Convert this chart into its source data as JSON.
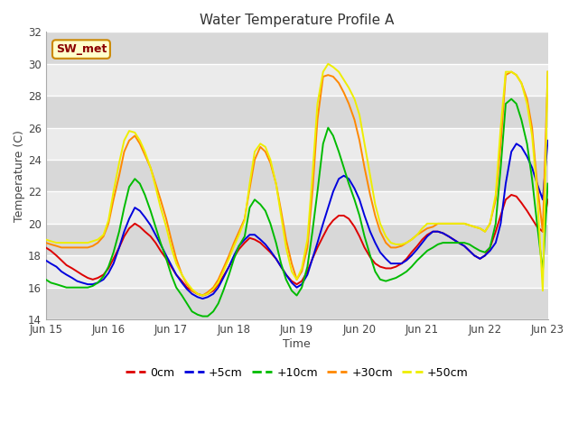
{
  "title": "Water Temperature Profile A",
  "xlabel": "Time",
  "ylabel": "Temperature (C)",
  "ylim": [
    14,
    32
  ],
  "annotation": {
    "text": "SW_met",
    "color": "#8b0000",
    "bg": "#ffffcc",
    "border_color": "#cc8800",
    "fontsize": 9
  },
  "series_colors": {
    "0cm": "#dd0000",
    "+5cm": "#0000dd",
    "+10cm": "#00bb00",
    "+30cm": "#ff8800",
    "+50cm": "#eeee00"
  },
  "xtick_positions": [
    0,
    1,
    2,
    3,
    4,
    5,
    6,
    7,
    8
  ],
  "xtick_labels": [
    "Jun 15",
    "Jun 16",
    "Jun 17",
    "Jun 18",
    "Jun 19",
    "Jun 20",
    "Jun 21",
    "Jun 22",
    "Jun 23"
  ],
  "ytick_values": [
    14,
    16,
    18,
    20,
    22,
    24,
    26,
    28,
    30,
    32
  ],
  "bg_stripe_ranges": [
    [
      14,
      16
    ],
    [
      18,
      20
    ],
    [
      22,
      24
    ],
    [
      26,
      28
    ],
    [
      30,
      32
    ]
  ],
  "data": {
    "0cm": {
      "x": [
        0.0,
        0.08,
        0.17,
        0.25,
        0.33,
        0.42,
        0.5,
        0.58,
        0.67,
        0.75,
        0.83,
        0.92,
        1.0,
        1.08,
        1.17,
        1.25,
        1.33,
        1.42,
        1.5,
        1.58,
        1.67,
        1.75,
        1.83,
        1.92,
        2.0,
        2.08,
        2.17,
        2.25,
        2.33,
        2.42,
        2.5,
        2.58,
        2.67,
        2.75,
        2.83,
        2.92,
        3.0,
        3.08,
        3.17,
        3.25,
        3.33,
        3.42,
        3.5,
        3.58,
        3.67,
        3.75,
        3.83,
        3.92,
        4.0,
        4.08,
        4.17,
        4.25,
        4.33,
        4.42,
        4.5,
        4.58,
        4.67,
        4.75,
        4.83,
        4.92,
        5.0,
        5.08,
        5.17,
        5.25,
        5.33,
        5.42,
        5.5,
        5.58,
        5.67,
        5.75,
        5.83,
        5.92,
        6.0,
        6.08,
        6.17,
        6.25,
        6.33,
        6.42,
        6.5,
        6.58,
        6.67,
        6.75,
        6.83,
        6.92,
        7.0,
        7.08,
        7.17,
        7.25,
        7.33,
        7.42,
        7.5,
        7.58,
        7.67,
        7.75,
        7.83,
        7.92,
        8.0
      ],
      "y": [
        18.5,
        18.3,
        18.0,
        17.7,
        17.4,
        17.2,
        17.0,
        16.8,
        16.6,
        16.5,
        16.6,
        16.8,
        17.2,
        17.8,
        18.5,
        19.2,
        19.7,
        20.0,
        19.8,
        19.5,
        19.2,
        18.8,
        18.3,
        17.8,
        17.3,
        16.8,
        16.4,
        16.0,
        15.8,
        15.6,
        15.5,
        15.6,
        15.8,
        16.2,
        16.7,
        17.3,
        17.9,
        18.4,
        18.8,
        19.1,
        19.0,
        18.8,
        18.5,
        18.2,
        17.8,
        17.3,
        16.8,
        16.4,
        16.2,
        16.4,
        17.0,
        17.8,
        18.5,
        19.2,
        19.8,
        20.2,
        20.5,
        20.5,
        20.3,
        19.8,
        19.2,
        18.5,
        17.9,
        17.5,
        17.3,
        17.2,
        17.2,
        17.3,
        17.5,
        17.8,
        18.2,
        18.6,
        19.0,
        19.3,
        19.5,
        19.5,
        19.4,
        19.2,
        19.0,
        18.8,
        18.6,
        18.3,
        18.0,
        17.8,
        18.0,
        18.5,
        19.5,
        20.5,
        21.5,
        21.8,
        21.7,
        21.3,
        20.8,
        20.3,
        19.8,
        19.5,
        21.5
      ]
    },
    "+5cm": {
      "x": [
        0.0,
        0.08,
        0.17,
        0.25,
        0.33,
        0.42,
        0.5,
        0.58,
        0.67,
        0.75,
        0.83,
        0.92,
        1.0,
        1.08,
        1.17,
        1.25,
        1.33,
        1.42,
        1.5,
        1.58,
        1.67,
        1.75,
        1.83,
        1.92,
        2.0,
        2.08,
        2.17,
        2.25,
        2.33,
        2.42,
        2.5,
        2.58,
        2.67,
        2.75,
        2.83,
        2.92,
        3.0,
        3.08,
        3.17,
        3.25,
        3.33,
        3.42,
        3.5,
        3.58,
        3.67,
        3.75,
        3.83,
        3.92,
        4.0,
        4.08,
        4.17,
        4.25,
        4.33,
        4.42,
        4.5,
        4.58,
        4.67,
        4.75,
        4.83,
        4.92,
        5.0,
        5.08,
        5.17,
        5.25,
        5.33,
        5.42,
        5.5,
        5.58,
        5.67,
        5.75,
        5.83,
        5.92,
        6.0,
        6.08,
        6.17,
        6.25,
        6.33,
        6.42,
        6.5,
        6.58,
        6.67,
        6.75,
        6.83,
        6.92,
        7.0,
        7.08,
        7.17,
        7.25,
        7.33,
        7.42,
        7.5,
        7.58,
        7.67,
        7.75,
        7.83,
        7.92,
        8.0
      ],
      "y": [
        17.7,
        17.5,
        17.3,
        17.0,
        16.8,
        16.6,
        16.4,
        16.3,
        16.2,
        16.2,
        16.3,
        16.5,
        16.9,
        17.5,
        18.5,
        19.5,
        20.3,
        21.0,
        20.8,
        20.4,
        19.9,
        19.3,
        18.7,
        18.0,
        17.4,
        16.8,
        16.3,
        15.9,
        15.6,
        15.4,
        15.3,
        15.4,
        15.6,
        16.0,
        16.6,
        17.3,
        18.0,
        18.6,
        19.0,
        19.3,
        19.3,
        19.0,
        18.7,
        18.3,
        17.8,
        17.3,
        16.8,
        16.3,
        16.0,
        16.2,
        16.8,
        17.8,
        18.8,
        20.0,
        21.0,
        22.0,
        22.8,
        23.0,
        22.8,
        22.2,
        21.5,
        20.5,
        19.5,
        18.8,
        18.2,
        17.8,
        17.5,
        17.5,
        17.5,
        17.7,
        18.0,
        18.4,
        18.8,
        19.2,
        19.5,
        19.5,
        19.4,
        19.2,
        19.0,
        18.8,
        18.6,
        18.3,
        18.0,
        17.8,
        18.0,
        18.3,
        18.8,
        20.0,
        22.5,
        24.5,
        25.0,
        24.8,
        24.2,
        23.5,
        22.5,
        21.5,
        25.2
      ]
    },
    "+10cm": {
      "x": [
        0.0,
        0.08,
        0.17,
        0.25,
        0.33,
        0.42,
        0.5,
        0.58,
        0.67,
        0.75,
        0.83,
        0.92,
        1.0,
        1.08,
        1.17,
        1.25,
        1.33,
        1.42,
        1.5,
        1.58,
        1.67,
        1.75,
        1.83,
        1.92,
        2.0,
        2.08,
        2.17,
        2.25,
        2.33,
        2.42,
        2.5,
        2.58,
        2.67,
        2.75,
        2.83,
        2.92,
        3.0,
        3.08,
        3.17,
        3.25,
        3.33,
        3.42,
        3.5,
        3.58,
        3.67,
        3.75,
        3.83,
        3.92,
        4.0,
        4.08,
        4.17,
        4.25,
        4.33,
        4.42,
        4.5,
        4.58,
        4.67,
        4.75,
        4.83,
        4.92,
        5.0,
        5.08,
        5.17,
        5.25,
        5.33,
        5.42,
        5.5,
        5.58,
        5.67,
        5.75,
        5.83,
        5.92,
        6.0,
        6.08,
        6.17,
        6.25,
        6.33,
        6.42,
        6.5,
        6.58,
        6.67,
        6.75,
        6.83,
        6.92,
        7.0,
        7.08,
        7.17,
        7.25,
        7.33,
        7.42,
        7.5,
        7.58,
        7.67,
        7.75,
        7.83,
        7.92,
        8.0
      ],
      "y": [
        16.5,
        16.3,
        16.2,
        16.1,
        16.0,
        16.0,
        16.0,
        16.0,
        16.0,
        16.1,
        16.3,
        16.7,
        17.3,
        18.2,
        19.5,
        21.0,
        22.3,
        22.8,
        22.5,
        21.8,
        20.8,
        19.8,
        18.8,
        17.8,
        16.8,
        16.0,
        15.5,
        15.0,
        14.5,
        14.3,
        14.2,
        14.2,
        14.5,
        15.0,
        15.8,
        16.8,
        17.8,
        18.6,
        19.2,
        21.0,
        21.5,
        21.2,
        20.8,
        20.0,
        18.8,
        17.5,
        16.5,
        15.8,
        15.5,
        16.0,
        17.3,
        19.5,
        22.0,
        25.0,
        26.0,
        25.5,
        24.5,
        23.5,
        22.5,
        21.5,
        20.5,
        19.2,
        18.0,
        17.0,
        16.5,
        16.4,
        16.5,
        16.6,
        16.8,
        17.0,
        17.3,
        17.7,
        18.0,
        18.3,
        18.5,
        18.7,
        18.8,
        18.8,
        18.8,
        18.8,
        18.8,
        18.7,
        18.5,
        18.3,
        18.2,
        18.5,
        20.0,
        23.5,
        27.5,
        27.8,
        27.5,
        26.5,
        25.0,
        22.8,
        20.0,
        17.0,
        22.5
      ]
    },
    "+30cm": {
      "x": [
        0.0,
        0.08,
        0.17,
        0.25,
        0.33,
        0.42,
        0.5,
        0.58,
        0.67,
        0.75,
        0.83,
        0.92,
        1.0,
        1.08,
        1.17,
        1.25,
        1.33,
        1.42,
        1.5,
        1.58,
        1.67,
        1.75,
        1.83,
        1.92,
        2.0,
        2.08,
        2.17,
        2.25,
        2.33,
        2.42,
        2.5,
        2.58,
        2.67,
        2.75,
        2.83,
        2.92,
        3.0,
        3.08,
        3.17,
        3.25,
        3.33,
        3.42,
        3.5,
        3.58,
        3.67,
        3.75,
        3.83,
        3.92,
        4.0,
        4.08,
        4.17,
        4.25,
        4.33,
        4.42,
        4.5,
        4.58,
        4.67,
        4.75,
        4.83,
        4.92,
        5.0,
        5.08,
        5.17,
        5.25,
        5.33,
        5.42,
        5.5,
        5.58,
        5.67,
        5.75,
        5.83,
        5.92,
        6.0,
        6.08,
        6.17,
        6.25,
        6.33,
        6.42,
        6.5,
        6.58,
        6.67,
        6.75,
        6.83,
        6.92,
        7.0,
        7.08,
        7.17,
        7.25,
        7.33,
        7.42,
        7.5,
        7.58,
        7.67,
        7.75,
        7.83,
        7.92,
        8.0
      ],
      "y": [
        18.8,
        18.7,
        18.6,
        18.5,
        18.5,
        18.5,
        18.5,
        18.5,
        18.5,
        18.6,
        18.8,
        19.2,
        20.0,
        21.5,
        23.0,
        24.5,
        25.2,
        25.5,
        25.0,
        24.3,
        23.5,
        22.5,
        21.5,
        20.3,
        19.0,
        17.8,
        16.8,
        16.2,
        15.8,
        15.6,
        15.5,
        15.7,
        16.0,
        16.5,
        17.2,
        18.0,
        18.8,
        19.5,
        20.3,
        22.2,
        24.0,
        24.8,
        24.5,
        23.8,
        22.5,
        20.8,
        19.0,
        17.5,
        16.5,
        17.0,
        18.5,
        22.0,
        26.5,
        29.2,
        29.3,
        29.2,
        28.8,
        28.2,
        27.5,
        26.5,
        25.2,
        23.5,
        21.8,
        20.5,
        19.5,
        18.8,
        18.5,
        18.5,
        18.6,
        18.8,
        19.0,
        19.3,
        19.5,
        19.7,
        19.8,
        20.0,
        20.0,
        20.0,
        20.0,
        20.0,
        20.0,
        19.9,
        19.8,
        19.7,
        19.5,
        20.0,
        21.5,
        25.0,
        29.3,
        29.5,
        29.3,
        28.8,
        27.8,
        26.0,
        22.5,
        19.5,
        29.5
      ]
    },
    "+50cm": {
      "x": [
        0.0,
        0.08,
        0.17,
        0.25,
        0.33,
        0.42,
        0.5,
        0.58,
        0.67,
        0.75,
        0.83,
        0.92,
        1.0,
        1.08,
        1.17,
        1.25,
        1.33,
        1.42,
        1.5,
        1.58,
        1.67,
        1.75,
        1.83,
        1.92,
        2.0,
        2.08,
        2.17,
        2.25,
        2.33,
        2.42,
        2.5,
        2.58,
        2.67,
        2.75,
        2.83,
        2.92,
        3.0,
        3.08,
        3.17,
        3.25,
        3.33,
        3.42,
        3.5,
        3.58,
        3.67,
        3.75,
        3.83,
        3.92,
        4.0,
        4.08,
        4.17,
        4.25,
        4.33,
        4.42,
        4.5,
        4.58,
        4.67,
        4.75,
        4.83,
        4.92,
        5.0,
        5.08,
        5.17,
        5.25,
        5.33,
        5.42,
        5.5,
        5.58,
        5.67,
        5.75,
        5.83,
        5.92,
        6.0,
        6.08,
        6.17,
        6.25,
        6.33,
        6.42,
        6.5,
        6.58,
        6.67,
        6.75,
        6.83,
        6.92,
        7.0,
        7.08,
        7.17,
        7.25,
        7.33,
        7.42,
        7.5,
        7.58,
        7.67,
        7.75,
        7.83,
        7.92,
        8.0
      ],
      "y": [
        19.0,
        18.9,
        18.8,
        18.8,
        18.8,
        18.8,
        18.8,
        18.8,
        18.8,
        18.9,
        19.0,
        19.3,
        20.2,
        22.0,
        23.8,
        25.2,
        25.8,
        25.7,
        25.2,
        24.5,
        23.5,
        22.3,
        21.0,
        19.8,
        18.5,
        17.5,
        16.8,
        16.3,
        15.9,
        15.6,
        15.5,
        15.6,
        15.9,
        16.3,
        17.0,
        17.8,
        18.6,
        19.3,
        20.2,
        22.5,
        24.5,
        25.0,
        24.8,
        24.0,
        22.5,
        20.5,
        18.5,
        17.0,
        16.5,
        17.2,
        19.0,
        23.0,
        27.5,
        29.5,
        30.0,
        29.8,
        29.5,
        29.0,
        28.5,
        27.8,
        26.8,
        25.0,
        23.0,
        21.2,
        20.0,
        19.2,
        18.8,
        18.7,
        18.7,
        18.8,
        19.0,
        19.3,
        19.7,
        20.0,
        20.0,
        20.0,
        20.0,
        20.0,
        20.0,
        20.0,
        20.0,
        19.9,
        19.8,
        19.7,
        19.5,
        20.0,
        21.8,
        26.0,
        29.5,
        29.5,
        29.3,
        28.8,
        27.5,
        25.5,
        22.0,
        15.8,
        29.5
      ]
    }
  }
}
